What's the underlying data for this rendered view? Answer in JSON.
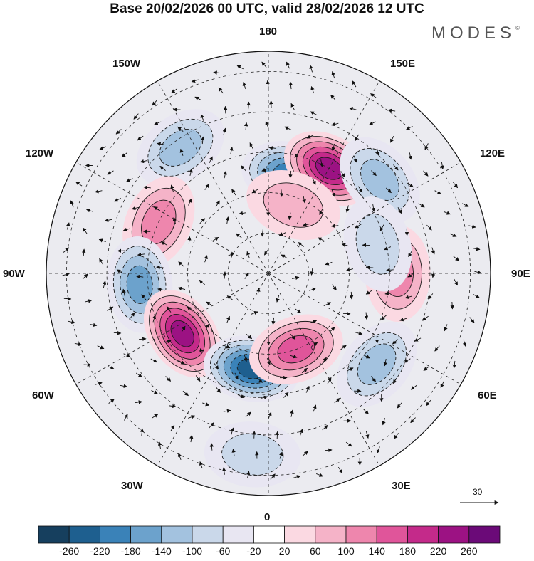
{
  "title": "Base 20/02/2026 00 UTC, valid 28/02/2026 12 UTC",
  "brand": "MODES",
  "brand_mark": "©",
  "longitude_labels": {
    "n180": "180",
    "w150": "150W",
    "e150": "150E",
    "w120": "120W",
    "e120": "120E",
    "w90": "90W",
    "e90": "90E",
    "w60": "60W",
    "e60": "60E",
    "w30": "30W",
    "e30": "30E",
    "s0": "0"
  },
  "vector_scale_label": "30",
  "colorbar": {
    "labels": [
      "-260",
      "-220",
      "-180",
      "-140",
      "-100",
      "-60",
      "-20",
      "20",
      "60",
      "100",
      "140",
      "180",
      "220",
      "260"
    ],
    "colors": [
      "#163f5e",
      "#1e5f8f",
      "#3a82b8",
      "#6ca2cc",
      "#a3c2df",
      "#cad8ea",
      "#e8e6f2",
      "#ffffff",
      "#fbd9e2",
      "#f5b3c8",
      "#ee86ad",
      "#e0559a",
      "#c42a8a",
      "#9c1283",
      "#6b0a78"
    ]
  },
  "anomaly_cells": [
    {
      "lon": 168,
      "colat": 25,
      "value": -190
    },
    {
      "lon": 150,
      "colat": 30,
      "value": 240
    },
    {
      "lon": 130,
      "colat": 36,
      "value": -120
    },
    {
      "lon": 160,
      "colat": 18,
      "value": 80
    },
    {
      "lon": -145,
      "colat": 38,
      "value": -110
    },
    {
      "lon": -115,
      "colat": 30,
      "value": 120
    },
    {
      "lon": -85,
      "colat": 32,
      "value": -170
    },
    {
      "lon": -55,
      "colat": 26,
      "value": 230
    },
    {
      "lon": -10,
      "colat": 24,
      "value": -260
    },
    {
      "lon": 20,
      "colat": 20,
      "value": 160
    },
    {
      "lon": -5,
      "colat": 45,
      "value": -80
    },
    {
      "lon": 50,
      "colat": 35,
      "value": -140
    },
    {
      "lon": 90,
      "colat": 32,
      "value": 110
    },
    {
      "lon": 105,
      "colat": 28,
      "value": -90
    }
  ]
}
